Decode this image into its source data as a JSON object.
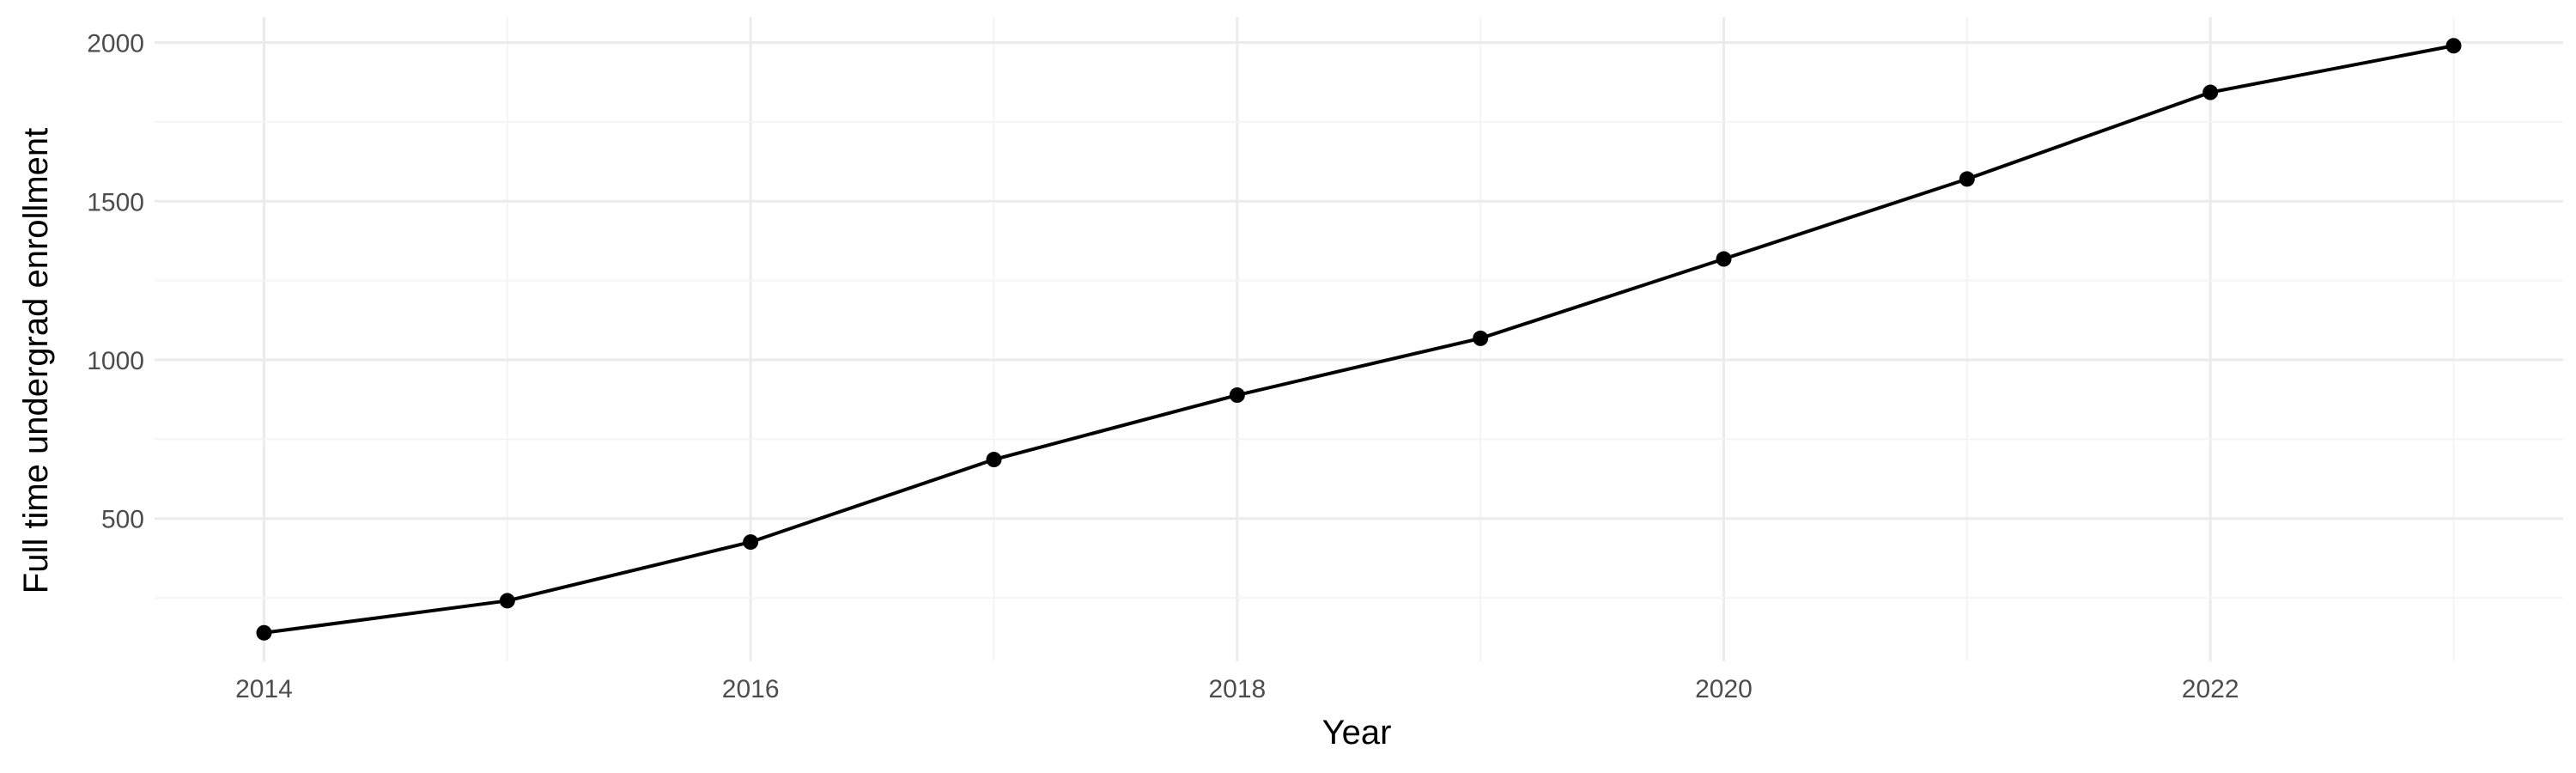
{
  "chart_data": {
    "type": "line",
    "xlabel": "Year",
    "ylabel": "Full time undergrad enrollment",
    "x": [
      2014,
      2015,
      2016,
      2017,
      2018,
      2019,
      2020,
      2021,
      2022,
      2023
    ],
    "series": [
      {
        "values": [
          140,
          241,
          426,
          686,
          889,
          1068,
          1318,
          1570,
          1843,
          1990
        ]
      }
    ],
    "x_ticks": [
      "2014",
      "2016",
      "2018",
      "2020",
      "2022"
    ],
    "y_ticks": [
      "500",
      "1000",
      "1500",
      "2000"
    ],
    "xlim": [
      2013.55,
      2023.45
    ],
    "ylim": [
      50,
      2080
    ],
    "grid": true,
    "legend": "none",
    "colors": {
      "line": "#000000",
      "point": "#000000",
      "grid": "#ebebeb",
      "background": "#ffffff"
    }
  }
}
